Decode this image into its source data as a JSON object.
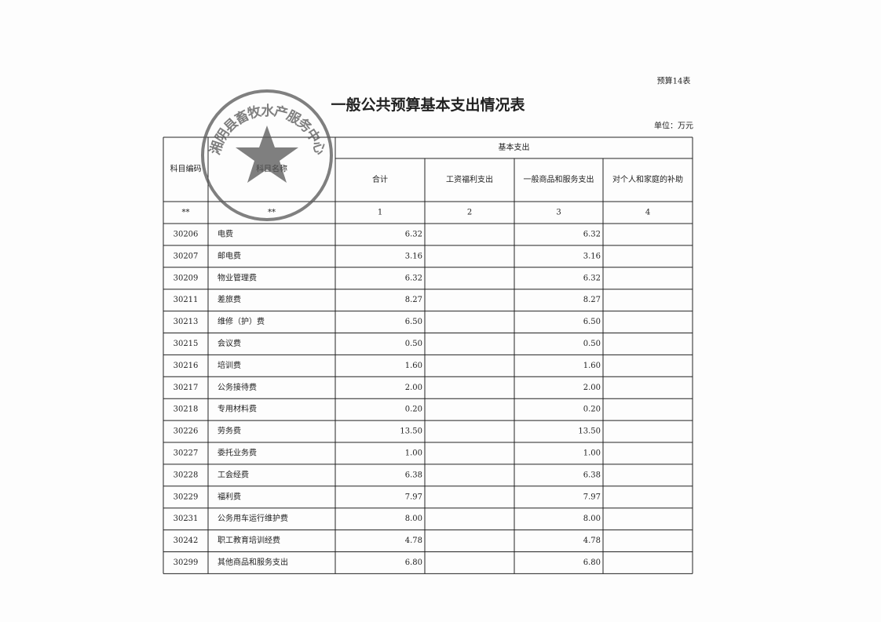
{
  "header": {
    "form_no": "预算14表",
    "title": "一般公共预算基本支出情况表",
    "unit": "单位：万元"
  },
  "stamp": {
    "text": "湘阴县畜牧水产服务中心"
  },
  "table": {
    "columns": {
      "code": "科目编码",
      "name": "科目名称",
      "group": "基本支出",
      "total": "合计",
      "wage": "工资福利支出",
      "goods_services": "一般商品和服务支出",
      "personal": "对个人和家庭的补助"
    },
    "index_row": [
      "**",
      "**",
      "1",
      "2",
      "3",
      "4"
    ],
    "rows": [
      {
        "code": "30206",
        "name": "电费",
        "total": "6.32",
        "goods_services": "6.32"
      },
      {
        "code": "30207",
        "name": "邮电费",
        "total": "3.16",
        "goods_services": "3.16"
      },
      {
        "code": "30209",
        "name": "物业管理费",
        "total": "6.32",
        "goods_services": "6.32"
      },
      {
        "code": "30211",
        "name": "差旅费",
        "total": "8.27",
        "goods_services": "8.27"
      },
      {
        "code": "30213",
        "name": "维修（护）费",
        "total": "6.50",
        "goods_services": "6.50"
      },
      {
        "code": "30215",
        "name": "会议费",
        "total": "0.50",
        "goods_services": "0.50"
      },
      {
        "code": "30216",
        "name": "培训费",
        "total": "1.60",
        "goods_services": "1.60"
      },
      {
        "code": "30217",
        "name": "公务接待费",
        "total": "2.00",
        "goods_services": "2.00"
      },
      {
        "code": "30218",
        "name": "专用材料费",
        "total": "0.20",
        "goods_services": "0.20"
      },
      {
        "code": "30226",
        "name": "劳务费",
        "total": "13.50",
        "goods_services": "13.50"
      },
      {
        "code": "30227",
        "name": "委托业务费",
        "total": "1.00",
        "goods_services": "1.00"
      },
      {
        "code": "30228",
        "name": "工会经费",
        "total": "6.38",
        "goods_services": "6.38"
      },
      {
        "code": "30229",
        "name": "福利费",
        "total": "7.97",
        "goods_services": "7.97"
      },
      {
        "code": "30231",
        "name": "公务用车运行维护费",
        "total": "8.00",
        "goods_services": "8.00"
      },
      {
        "code": "30242",
        "name": "职工教育培训经费",
        "total": "4.78",
        "goods_services": "4.78"
      },
      {
        "code": "30299",
        "name": "其他商品和服务支出",
        "total": "6.80",
        "goods_services": "6.80"
      }
    ]
  }
}
